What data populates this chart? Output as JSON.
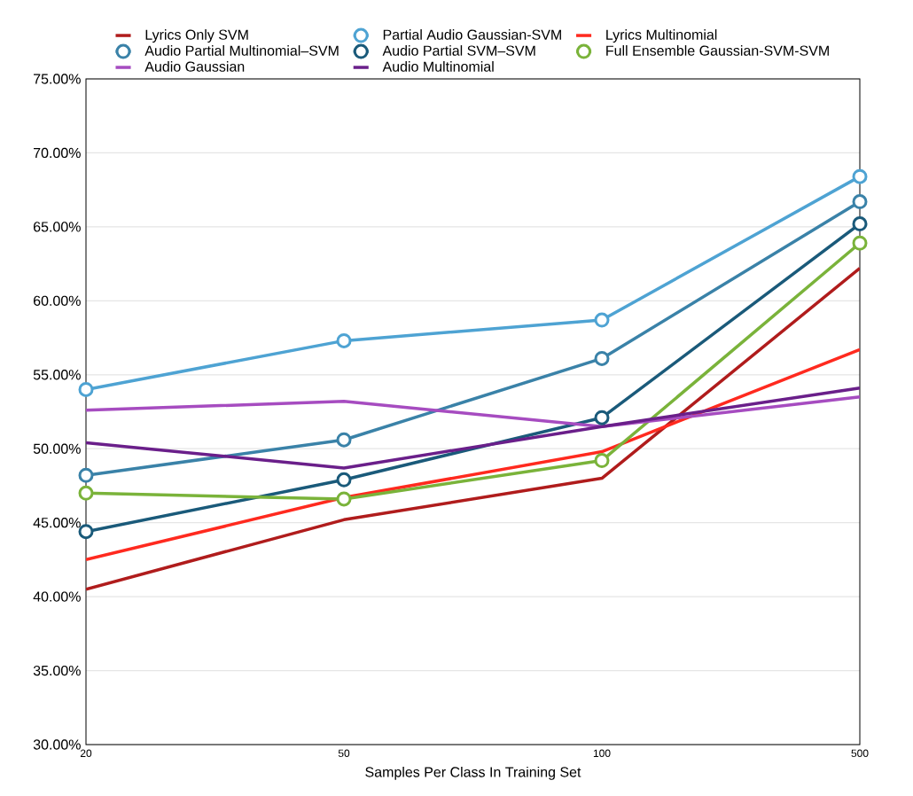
{
  "chart_data": {
    "type": "line",
    "xlabel": "Samples Per Class In Training Set",
    "categories": [
      "20",
      "50",
      "100",
      "500"
    ],
    "ylim": [
      30,
      75
    ],
    "yticks": [
      {
        "value": 30,
        "label": "30.00%"
      },
      {
        "value": 35,
        "label": "35.00%"
      },
      {
        "value": 40,
        "label": "40.00%"
      },
      {
        "value": 45,
        "label": "45.00%"
      },
      {
        "value": 50,
        "label": "50.00%"
      },
      {
        "value": 55,
        "label": "55.00%"
      },
      {
        "value": 60,
        "label": "60.00%"
      },
      {
        "value": 65,
        "label": "65.00%"
      },
      {
        "value": 70,
        "label": "70.00%"
      },
      {
        "value": 75,
        "label": "75.00%"
      }
    ],
    "grid": "y",
    "legend": "top",
    "series": [
      {
        "name": "Lyrics Only SVM",
        "color": "#b01c1c",
        "marker": "none",
        "values": [
          40.5,
          45.2,
          48.0,
          62.2
        ]
      },
      {
        "name": "Partial Audio Gaussian-SVM",
        "color": "#4ea3d3",
        "marker": "circle",
        "values": [
          54.0,
          57.3,
          58.7,
          68.4
        ]
      },
      {
        "name": "Lyrics Multinomial",
        "color": "#ff2a1f",
        "marker": "none",
        "values": [
          42.5,
          46.7,
          49.8,
          56.7
        ]
      },
      {
        "name": "Audio Partial Multinomial–SVM",
        "color": "#3a82a8",
        "marker": "circle",
        "values": [
          48.2,
          50.6,
          56.1,
          66.7
        ]
      },
      {
        "name": "Audio Partial SVM–SVM",
        "color": "#1a5a7a",
        "marker": "circle",
        "values": [
          44.4,
          47.9,
          52.1,
          65.2
        ]
      },
      {
        "name": "Full Ensemble Gaussian-SVM-SVM",
        "color": "#7ab33a",
        "marker": "circle",
        "values": [
          47.0,
          46.6,
          49.2,
          63.9
        ]
      },
      {
        "name": "Audio Gaussian",
        "color": "#a64cc0",
        "marker": "none",
        "values": [
          52.6,
          53.2,
          51.5,
          53.5
        ]
      },
      {
        "name": "Audio Multinomial",
        "color": "#6a1f8a",
        "marker": "none",
        "values": [
          50.4,
          48.7,
          51.5,
          54.1
        ]
      }
    ]
  }
}
